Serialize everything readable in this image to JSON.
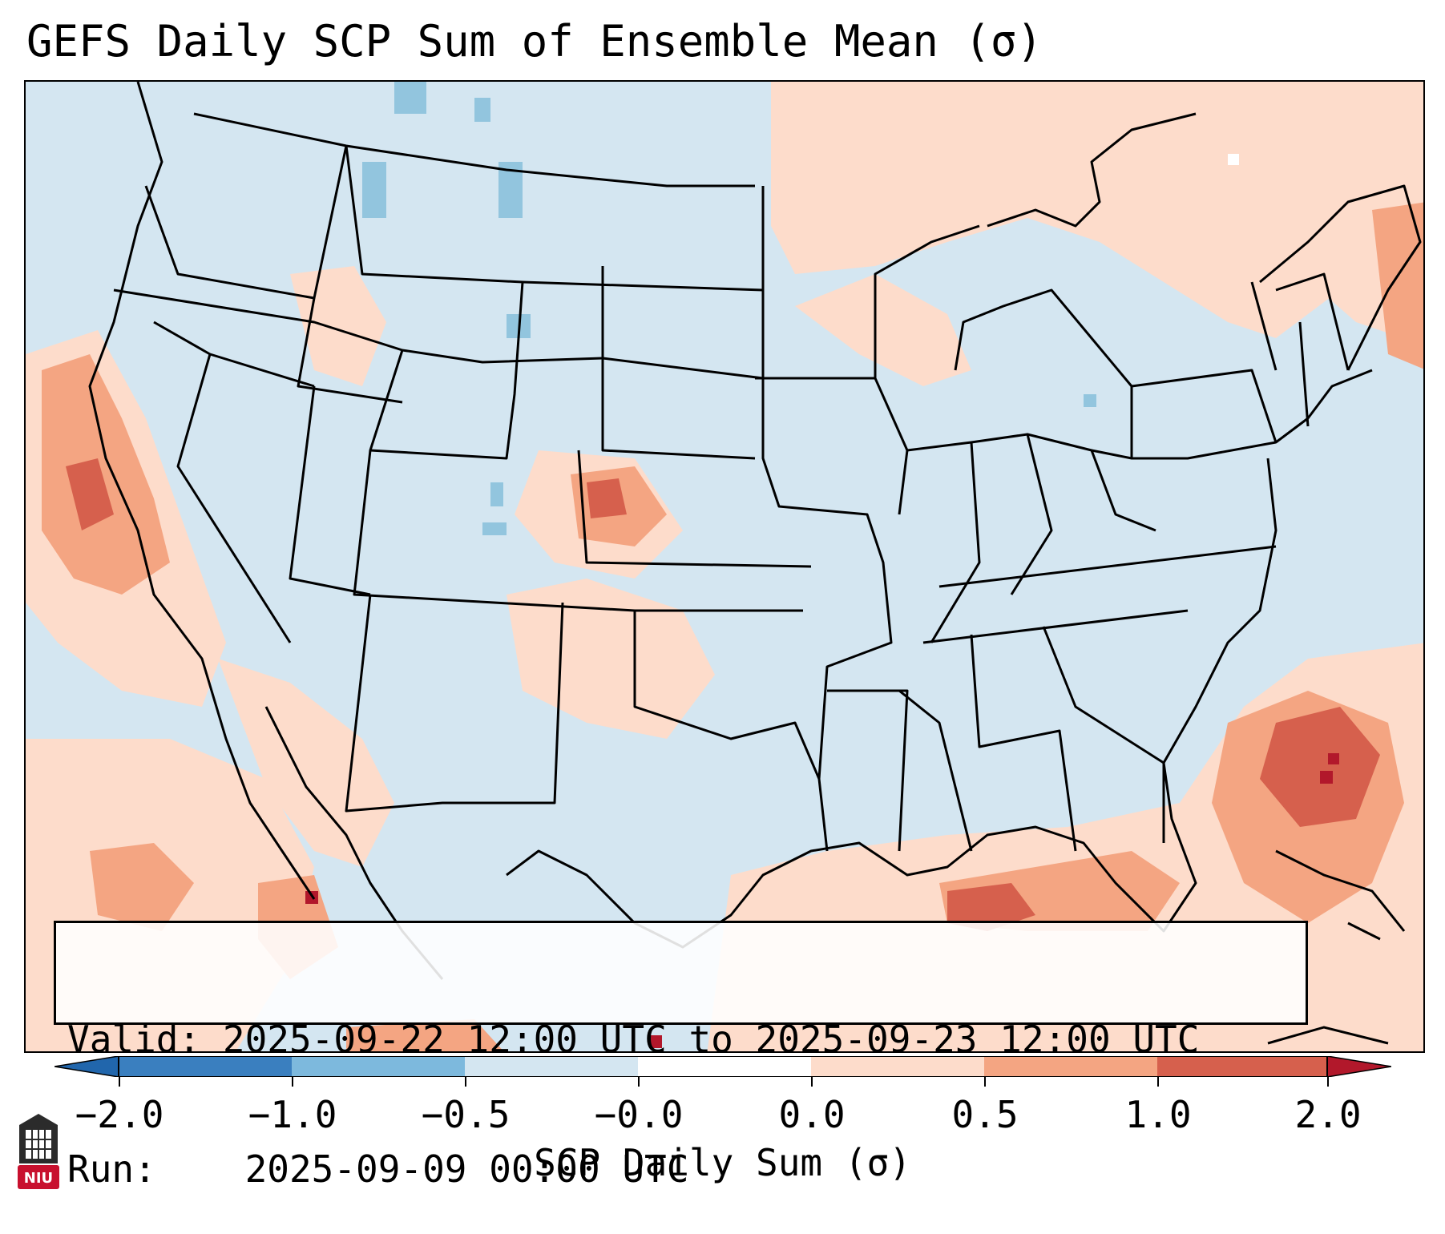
{
  "title": "GEFS Daily SCP Sum of Ensemble Mean (σ)",
  "info": {
    "valid_label": "Valid:",
    "valid_value": "2025-09-22 12:00 UTC to 2025-09-23 12:00 UTC",
    "run_label": "Run:",
    "run_value": "2025-09-09 00:00 UTC"
  },
  "colorbar": {
    "label": "SCP Daily Sum (σ)",
    "ticks": [
      "−2.0",
      "−1.0",
      "−0.5",
      "−0.0",
      "0.0",
      "0.5",
      "1.0",
      "2.0"
    ],
    "colors": [
      "#3a7fbf",
      "#7db9dd",
      "#d4e6f1",
      "#ffffff",
      "#fddccb",
      "#f4a582",
      "#d6604d",
      "#b2182b"
    ],
    "under_color": "#2166ac",
    "over_color": "#b2182b"
  },
  "map": {
    "background_color": "#d4e6f1",
    "positive_low": "#fddccb",
    "positive_mid": "#f4a582",
    "positive_high": "#d6604d",
    "positive_max": "#b2182b",
    "negative_low": "#92c5de"
  },
  "logo": {
    "text": "NIU"
  }
}
